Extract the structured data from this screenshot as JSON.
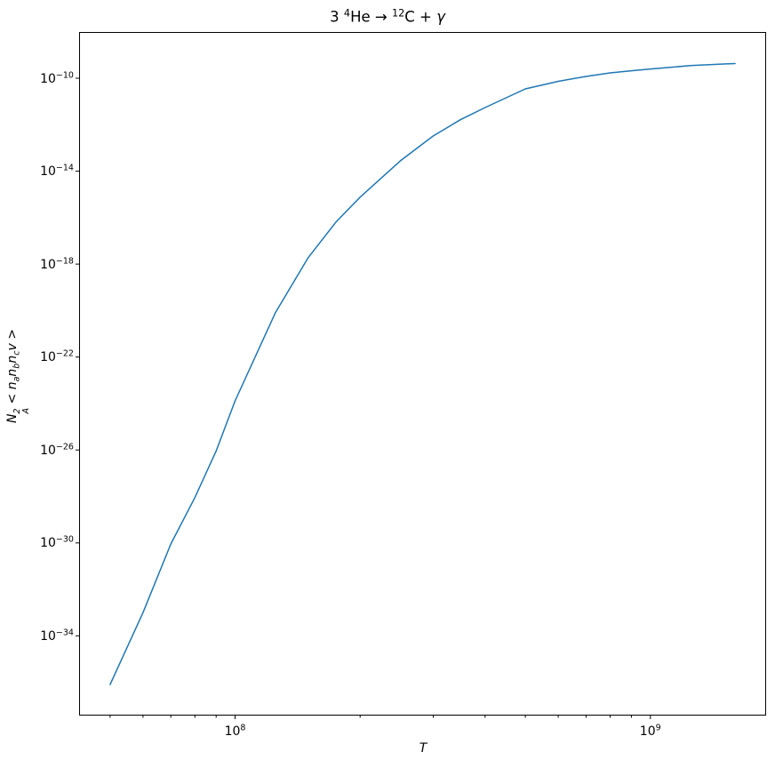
{
  "figure": {
    "background_color": "#ffffff",
    "spine_color": "#000000",
    "text_color": "#000000"
  },
  "chart_data": {
    "type": "line",
    "title": "3 ⁴He → ¹²C + γ",
    "title_segments": [
      {
        "text": "3 "
      },
      {
        "sup": "4"
      },
      {
        "text": "He → "
      },
      {
        "sup": "12"
      },
      {
        "text": "C + "
      },
      {
        "text": "γ",
        "italic": true
      }
    ],
    "xlabel": "T",
    "ylabel": "N_A^2 < n_a n_b n_c v >",
    "ylabel_segments": [
      {
        "text": "N",
        "sup": "2",
        "sub": "A"
      },
      {
        "text": " < "
      },
      {
        "text": "n",
        "sub": "a"
      },
      {
        "text": "n",
        "sub": "b"
      },
      {
        "text": "n",
        "sub": "c"
      },
      {
        "text": "v"
      },
      {
        "text": " >"
      }
    ],
    "xscale": "log",
    "yscale": "log",
    "grid": false,
    "legend": null,
    "line_color": "#1f77b4",
    "line_width": 1.5,
    "x": [
      50000000.0,
      60000000.0,
      70000000.0,
      80000000.0,
      90000000.0,
      100000000.0,
      125000000.0,
      150000000.0,
      175000000.0,
      200000000.0,
      250000000.0,
      300000000.0,
      350000000.0,
      400000000.0,
      500000000.0,
      600000000.0,
      700000000.0,
      800000000.0,
      900000000.0,
      1000000000.0,
      1250000000.0,
      1500000000.0,
      1600000000.0
    ],
    "y": [
      8e-37,
      1e-33,
      9e-31,
      9e-29,
      9e-27,
      1.3e-24,
      8e-21,
      1.9e-18,
      6.5e-17,
      7.6e-16,
      2.8e-14,
      3.3e-13,
      1.7e-12,
      5.5e-12,
      3.5e-11,
      7.4e-11,
      1.2e-10,
      1.7e-10,
      2.1e-10,
      2.5e-10,
      3.5e-10,
      4.1e-10,
      4.3e-10
    ],
    "xlim": [
      42100000.0,
      1900000000.0
    ],
    "ylim": [
      3.7e-38,
      9.8e-09
    ],
    "x_major_tick_exponents": [
      8,
      9
    ],
    "x_minor_ticks": [
      50000000.0,
      60000000.0,
      70000000.0,
      80000000.0,
      90000000.0,
      200000000.0,
      300000000.0,
      400000000.0,
      500000000.0,
      600000000.0,
      700000000.0,
      800000000.0,
      900000000.0
    ],
    "y_major_tick_exponents": [
      -10,
      -14,
      -18,
      -22,
      -26,
      -30,
      -34
    ]
  }
}
